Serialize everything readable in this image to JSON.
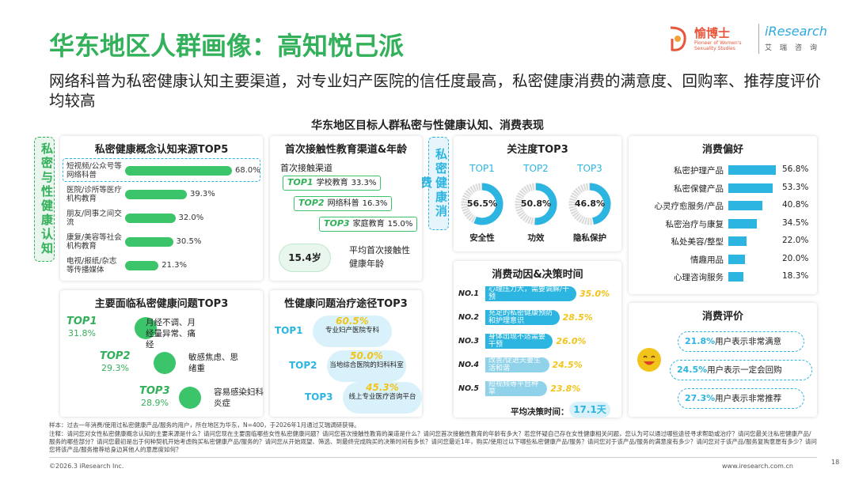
{
  "header": {
    "title": "华东地区人群画像：高知悦己派",
    "subtitle": "网络科普为私密健康认知主要渠道，对专业妇产医院的信任度最高，私密健康消费的满意度、回购率、推荐度评价均较高",
    "chart_title": "华东地区目标人群私密与性健康认知、消费表现"
  },
  "logo": {
    "brand_cn": "愉博士",
    "brand_en": "Pioneer of Women's Sexuality Studies",
    "ires": "iResearch",
    "ires_cn": "艾瑞咨询"
  },
  "side_labels": {
    "left": "私密与性健康认知",
    "right": "私密健康消费"
  },
  "colors": {
    "green": "#3cc46a",
    "blue": "#2cb5e0",
    "yellow": "#f2c419",
    "gray": "#d9d9d9"
  },
  "chart_data": [
    {
      "type": "bar",
      "title": "私密健康概念认知来源TOP5",
      "categories": [
        "短视频/公众号等网络科普",
        "医院/诊所等医疗机构教育",
        "朋友/同事之间交流",
        "康复/美容等社会机构教育",
        "电视/报纸/杂志等传播媒体"
      ],
      "values": [
        68.0,
        39.3,
        32.0,
        30.5,
        21.3
      ],
      "labels": [
        "68.0%",
        "39.3%",
        "32.0%",
        "30.5%",
        "21.3%"
      ],
      "unit": "%"
    },
    {
      "type": "bar",
      "title": "首次接触性教育渠道&年龄",
      "subtitle": "首次接触渠道",
      "items": [
        {
          "rank": "TOP1",
          "name": "学校教育",
          "value": "33.3%"
        },
        {
          "rank": "TOP2",
          "name": "网络科普",
          "value": "16.3%"
        },
        {
          "rank": "TOP3",
          "name": "家庭教育",
          "value": "15.0%"
        }
      ],
      "avg_age": "15.4岁",
      "avg_age_label": "平均首次接触性健康年龄"
    },
    {
      "type": "pie",
      "title": "关注度TOP3",
      "items": [
        {
          "rank": "TOP1",
          "value": 56.5,
          "label": "56.5%",
          "name": "安全性"
        },
        {
          "rank": "TOP2",
          "value": 50.8,
          "label": "50.8%",
          "name": "功效"
        },
        {
          "rank": "TOP3",
          "value": 46.8,
          "label": "46.8%",
          "name": "隐私保护"
        }
      ]
    },
    {
      "type": "bar",
      "title": "消费偏好",
      "categories": [
        "私密护理产品",
        "私密保健产品",
        "心灵疗愈服务/产品",
        "私密治疗与康复",
        "私处美容/整型",
        "情趣用品",
        "心理咨询服务"
      ],
      "values": [
        56.8,
        53.3,
        40.8,
        34.5,
        22.0,
        20.0,
        18.3
      ],
      "labels": [
        "56.8%",
        "53.3%",
        "40.8%",
        "34.5%",
        "22.0%",
        "20.0%",
        "18.3%"
      ],
      "unit": "%"
    },
    {
      "type": "bar",
      "title": "消费动因&决策时间",
      "items": [
        {
          "no": "NO.1",
          "text": "心理压力大，需要调解/干预",
          "value": 35.0,
          "label": "35.0%"
        },
        {
          "no": "NO.2",
          "text": "充足的私密健康预防和护理意识",
          "value": 28.5,
          "label": "28.5%"
        },
        {
          "no": "NO.3",
          "text": "身体出现不适需要干预",
          "value": 26.0,
          "label": "26.0%"
        },
        {
          "no": "NO.4",
          "text": "改善/促进夫妻生活和谐",
          "value": 24.5,
          "label": "24.5%"
        },
        {
          "no": "NO.5",
          "text": "短视频等平台种草",
          "value": 23.8,
          "label": "23.8%"
        }
      ],
      "avg_decision_label": "平均决策时间：",
      "avg_decision_value": "17.1天"
    },
    {
      "type": "table",
      "title": "主要面临私密健康问题TOP3",
      "items": [
        {
          "rank": "TOP1",
          "pct": "31.8%",
          "text": "月经不调、月经量异常、痛经",
          "icon": "menstrual-pain-icon"
        },
        {
          "rank": "TOP2",
          "pct": "29.3%",
          "text": "敏感焦虑、思绪重",
          "icon": "anxiety-cloud-icon"
        },
        {
          "rank": "TOP3",
          "pct": "28.9%",
          "text": "容易感染妇科炎症",
          "icon": "gynecology-chair-icon"
        }
      ]
    },
    {
      "type": "table",
      "title": "性健康问题治疗途径TOP3",
      "items": [
        {
          "rank": "TOP1",
          "pct": "60.5%",
          "text": "专业妇产医院专科"
        },
        {
          "rank": "TOP2",
          "pct": "50.0%",
          "text": "当地综合医院的妇科科室"
        },
        {
          "rank": "TOP3",
          "pct": "45.3%",
          "text": "线上专业医疗咨询平台"
        }
      ]
    },
    {
      "type": "table",
      "title": "消费评价",
      "items": [
        {
          "pct": "21.8%",
          "text": "用户表示非常满意"
        },
        {
          "pct": "24.5%",
          "text": "用户表示一定会回购"
        },
        {
          "pct": "27.3%",
          "text": "用户表示非常推荐"
        }
      ]
    }
  ],
  "notes": {
    "sample": "样本：过去一年消费/使用过私密健康产品/服务的用户，所在地区为华东，N=400，于2026年1月通过艾瑞调研获得。",
    "note": "注释：请问您对女性私密健康概念认知的主要来源是什么？请问您现在主要面临哪些女性私密健康问题？请问您首次接触性教育的渠道是什么？请问您首次接触性教育的年龄有多大？若您怀疑自己存在女性健康相关问题，您认为可以通过哪些途径寻求帮助或治疗？请问您最关注私密健康产品/服务的哪些部分？请问您最初是出于何种契机开始考虑购买私密健康产品/服务的？请问您从开始观望、筛选、到最终完成购买的决策时间有多长？请问您最近1年，购买/使用过以下哪些私密健康产品/服务？请问您对于该产品/服务的满意度有多少？请问您对于该产品/服务复购意愿有多少？请问您将该产品/服务推荐给身边其他人的意愿度如何？"
  },
  "footer": {
    "copyright": "©2026.3 iResearch Inc.",
    "site": "www.iresearch.com.cn",
    "page": "18"
  }
}
